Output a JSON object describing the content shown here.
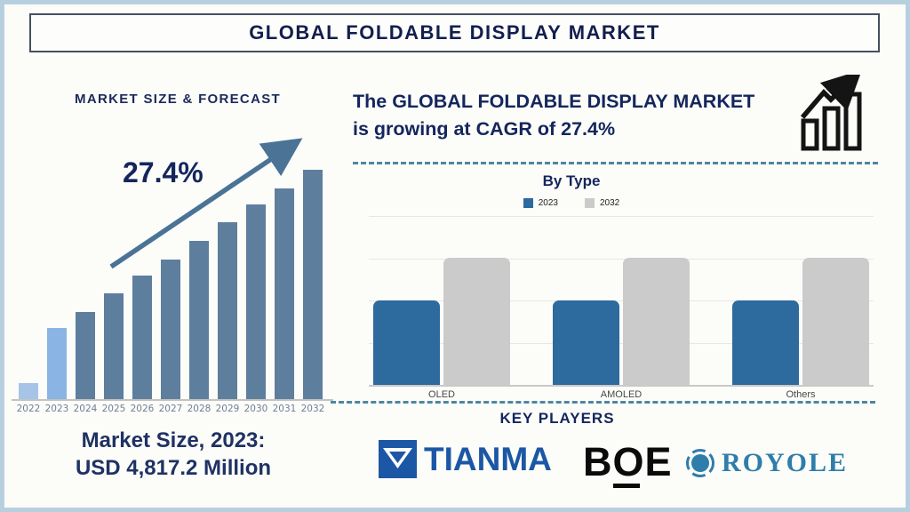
{
  "page": {
    "title": "GLOBAL FOLDABLE DISPLAY MARKET"
  },
  "left_panel": {
    "heading": "MARKET SIZE & FORECAST",
    "growth_label": "27.4%",
    "market_size_line1": "Market Size, 2023:",
    "market_size_line2": "USD 4,817.2 Million"
  },
  "right_panel": {
    "headline_line1": "The GLOBAL FOLDABLE DISPLAY MARKET",
    "headline_line2": "is growing at CAGR of 27.4%",
    "by_type": {
      "title": "By Type"
    },
    "key_players": {
      "title": "KEY PLAYERS",
      "players": [
        {
          "name": "TIANMA",
          "color": "#1b57a5"
        },
        {
          "name": "BOE",
          "color": "#0b0b0b"
        },
        {
          "name": "ROYOLE",
          "color": "#2e7dab"
        }
      ]
    }
  },
  "colors": {
    "navy_text": "#14265c",
    "page_border": "#b7d0e0",
    "title_border": "#46505e",
    "forecast_bar_default": "#5e7e9d",
    "forecast_bar_2022": "#a6c4e8",
    "forecast_bar_2023": "#8ab4e4",
    "trend_arrow": "#4a7396",
    "dashed_separator": "#4e86a2",
    "bytype_2023_bar": "#2d6a9d",
    "bytype_2032_bar": "#cbcbcb",
    "tick_label": "#6e7f95"
  },
  "chart_data": [
    {
      "type": "bar",
      "title": "MARKET SIZE & FORECAST",
      "categories": [
        "2022",
        "2023",
        "2024",
        "2025",
        "2026",
        "2027",
        "2028",
        "2029",
        "2030",
        "2031",
        "2032"
      ],
      "values": [
        7,
        31,
        38,
        46,
        54,
        61,
        69,
        77,
        85,
        92,
        100
      ],
      "value_unit": "relative bar height, % of 2032 bar (y-axis unlabeled)",
      "annotations": [
        "27.4% CAGR trend arrow"
      ],
      "stated_value": "Market Size, 2023: USD 4,817.2 Million",
      "xlabel": "",
      "ylabel": "",
      "ylim": [
        0,
        100
      ],
      "grid": false,
      "legend_position": "none",
      "bar_colors": [
        "#a6c4e8",
        "#8ab4e4",
        "#5e7e9d",
        "#5e7e9d",
        "#5e7e9d",
        "#5e7e9d",
        "#5e7e9d",
        "#5e7e9d",
        "#5e7e9d",
        "#5e7e9d",
        "#5e7e9d"
      ]
    },
    {
      "type": "bar",
      "title": "By Type",
      "categories": [
        "OLED",
        "AMOLED",
        "Others"
      ],
      "series": [
        {
          "name": "2023",
          "color": "#2d6a9d",
          "values": [
            50,
            50,
            50
          ]
        },
        {
          "name": "2032",
          "color": "#cbcbcb",
          "values": [
            75,
            75,
            75
          ]
        }
      ],
      "value_unit": "relative bar height, % of top gridline (y-axis unlabeled)",
      "xlabel": "",
      "ylabel": "",
      "ylim": [
        0,
        100
      ],
      "gridline_values": [
        25,
        50,
        75,
        100
      ],
      "grid": true,
      "legend_position": "top"
    }
  ]
}
